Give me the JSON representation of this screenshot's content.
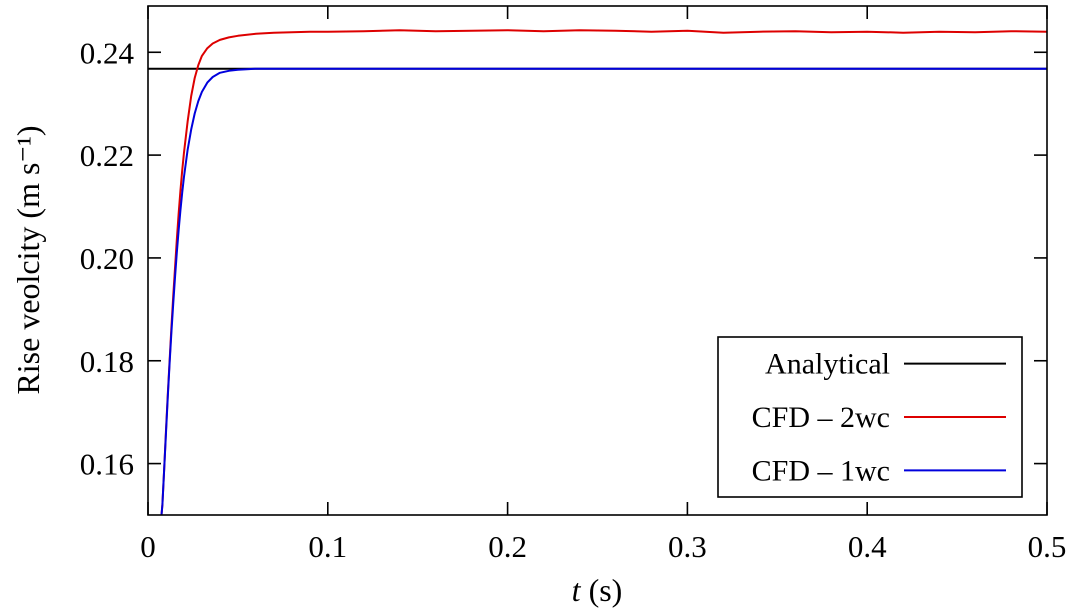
{
  "chart_data": {
    "type": "line",
    "title": "",
    "xlabel": "t (s)",
    "xlabel_var": "t",
    "xlabel_rest": " (s)",
    "ylabel": "Rise veolcity (m s⁻¹)",
    "xlim": [
      0,
      0.5
    ],
    "ylim": [
      0.15,
      0.249
    ],
    "grid": false,
    "legend_position": "bottom-right",
    "x_ticks": [
      {
        "v": 0,
        "label": "0"
      },
      {
        "v": 0.1,
        "label": "0.1"
      },
      {
        "v": 0.2,
        "label": "0.2"
      },
      {
        "v": 0.3,
        "label": "0.3"
      },
      {
        "v": 0.4,
        "label": "0.4"
      },
      {
        "v": 0.5,
        "label": "0.5"
      }
    ],
    "y_ticks": [
      {
        "v": 0.16,
        "label": "0.16"
      },
      {
        "v": 0.18,
        "label": "0.18"
      },
      {
        "v": 0.2,
        "label": "0.20"
      },
      {
        "v": 0.22,
        "label": "0.22"
      },
      {
        "v": 0.24,
        "label": "0.24"
      }
    ],
    "series": [
      {
        "id": "analytical",
        "name": "Analytical",
        "color": "#000000",
        "points": [
          [
            0,
            0.2368
          ],
          [
            0.5,
            0.2368
          ]
        ]
      },
      {
        "id": "cfd-2wc",
        "name": "CFD – 2wc",
        "color": "#dd0000",
        "points": [
          [
            0.007,
            0.148
          ],
          [
            0.008,
            0.152
          ],
          [
            0.009,
            0.159
          ],
          [
            0.01,
            0.1665
          ],
          [
            0.011,
            0.1735
          ],
          [
            0.012,
            0.18
          ],
          [
            0.013,
            0.1865
          ],
          [
            0.014,
            0.1925
          ],
          [
            0.015,
            0.198
          ],
          [
            0.016,
            0.2035
          ],
          [
            0.017,
            0.2085
          ],
          [
            0.018,
            0.213
          ],
          [
            0.019,
            0.217
          ],
          [
            0.02,
            0.2205
          ],
          [
            0.022,
            0.2265
          ],
          [
            0.024,
            0.2315
          ],
          [
            0.026,
            0.235
          ],
          [
            0.028,
            0.2375
          ],
          [
            0.03,
            0.2393
          ],
          [
            0.033,
            0.2408
          ],
          [
            0.036,
            0.2417
          ],
          [
            0.04,
            0.2424
          ],
          [
            0.045,
            0.2429
          ],
          [
            0.05,
            0.2432
          ],
          [
            0.06,
            0.2436
          ],
          [
            0.07,
            0.2438
          ],
          [
            0.08,
            0.2439
          ],
          [
            0.09,
            0.244
          ],
          [
            0.1,
            0.244
          ],
          [
            0.12,
            0.2441
          ],
          [
            0.14,
            0.2443
          ],
          [
            0.16,
            0.2441
          ],
          [
            0.18,
            0.2442
          ],
          [
            0.2,
            0.2443
          ],
          [
            0.22,
            0.2441
          ],
          [
            0.24,
            0.2443
          ],
          [
            0.26,
            0.2442
          ],
          [
            0.28,
            0.244
          ],
          [
            0.3,
            0.2442
          ],
          [
            0.32,
            0.2438
          ],
          [
            0.34,
            0.244
          ],
          [
            0.36,
            0.2441
          ],
          [
            0.38,
            0.2439
          ],
          [
            0.4,
            0.244
          ],
          [
            0.42,
            0.2438
          ],
          [
            0.44,
            0.244
          ],
          [
            0.46,
            0.2439
          ],
          [
            0.48,
            0.2441
          ],
          [
            0.5,
            0.244
          ]
        ]
      },
      {
        "id": "cfd-1wc",
        "name": "CFD – 1wc",
        "color": "#0000dd",
        "points": [
          [
            0.007,
            0.148
          ],
          [
            0.008,
            0.152
          ],
          [
            0.009,
            0.159
          ],
          [
            0.01,
            0.166
          ],
          [
            0.011,
            0.173
          ],
          [
            0.012,
            0.1795
          ],
          [
            0.013,
            0.1855
          ],
          [
            0.014,
            0.191
          ],
          [
            0.015,
            0.1962
          ],
          [
            0.016,
            0.201
          ],
          [
            0.017,
            0.2053
          ],
          [
            0.018,
            0.2092
          ],
          [
            0.019,
            0.2127
          ],
          [
            0.02,
            0.2158
          ],
          [
            0.022,
            0.221
          ],
          [
            0.024,
            0.225
          ],
          [
            0.026,
            0.2281
          ],
          [
            0.028,
            0.2305
          ],
          [
            0.03,
            0.2323
          ],
          [
            0.033,
            0.2341
          ],
          [
            0.036,
            0.2352
          ],
          [
            0.04,
            0.236
          ],
          [
            0.045,
            0.2364
          ],
          [
            0.05,
            0.2366
          ],
          [
            0.055,
            0.2367
          ],
          [
            0.06,
            0.2368
          ],
          [
            0.1,
            0.2368
          ],
          [
            0.2,
            0.2368
          ],
          [
            0.3,
            0.2368
          ],
          [
            0.4,
            0.2368
          ],
          [
            0.5,
            0.2368
          ]
        ]
      }
    ]
  }
}
